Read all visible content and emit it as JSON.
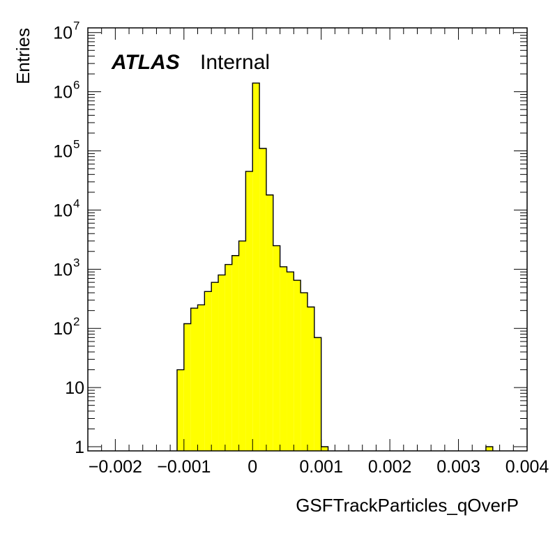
{
  "chart_data": {
    "type": "bar",
    "title": "",
    "xlabel": "GSFTrackParticles_qOverP",
    "ylabel": "Entries",
    "xlim": [
      -0.0024,
      0.004
    ],
    "ylim": [
      0.85,
      12000000
    ],
    "log_y": true,
    "grid": false,
    "legend": "none",
    "fill_color": "#ffff00",
    "line_color": "#000000",
    "annotation": {
      "experiment": "ATLAS",
      "status": "Internal"
    },
    "x_ticks": [
      {
        "value": -0.002,
        "label": "−0.002"
      },
      {
        "value": -0.001,
        "label": "−0.001"
      },
      {
        "value": 0,
        "label": "0"
      },
      {
        "value": 0.001,
        "label": "0.001"
      },
      {
        "value": 0.002,
        "label": "0.002"
      },
      {
        "value": 0.003,
        "label": "0.003"
      },
      {
        "value": 0.004,
        "label": "0.004"
      }
    ],
    "y_ticks": [
      {
        "value": 1,
        "base": "1",
        "exp": ""
      },
      {
        "value": 10,
        "base": "10",
        "exp": ""
      },
      {
        "value": 100,
        "base": "10",
        "exp": "2"
      },
      {
        "value": 1000,
        "base": "10",
        "exp": "3"
      },
      {
        "value": 10000,
        "base": "10",
        "exp": "4"
      },
      {
        "value": 100000,
        "base": "10",
        "exp": "5"
      },
      {
        "value": 1000000,
        "base": "10",
        "exp": "6"
      },
      {
        "value": 10000000,
        "base": "10",
        "exp": "7"
      }
    ],
    "bin_width": 0.0001,
    "bins": [
      {
        "x_low": -0.0011,
        "count": 20
      },
      {
        "x_low": -0.001,
        "count": 120
      },
      {
        "x_low": -0.0009,
        "count": 220
      },
      {
        "x_low": -0.0008,
        "count": 250
      },
      {
        "x_low": -0.0007,
        "count": 420
      },
      {
        "x_low": -0.0006,
        "count": 600
      },
      {
        "x_low": -0.0005,
        "count": 800
      },
      {
        "x_low": -0.0004,
        "count": 1200
      },
      {
        "x_low": -0.0003,
        "count": 1700
      },
      {
        "x_low": -0.0002,
        "count": 3000
      },
      {
        "x_low": -0.0001,
        "count": 45000
      },
      {
        "x_low": 0.0,
        "count": 1400000
      },
      {
        "x_low": 0.0001,
        "count": 110000
      },
      {
        "x_low": 0.0002,
        "count": 18000
      },
      {
        "x_low": 0.0003,
        "count": 2500
      },
      {
        "x_low": 0.0004,
        "count": 1100
      },
      {
        "x_low": 0.0005,
        "count": 900
      },
      {
        "x_low": 0.0006,
        "count": 650
      },
      {
        "x_low": 0.0007,
        "count": 400
      },
      {
        "x_low": 0.0008,
        "count": 230
      },
      {
        "x_low": 0.0009,
        "count": 70
      },
      {
        "x_low": 0.001,
        "count": 1
      },
      {
        "x_low": 0.0034,
        "count": 1
      }
    ]
  }
}
